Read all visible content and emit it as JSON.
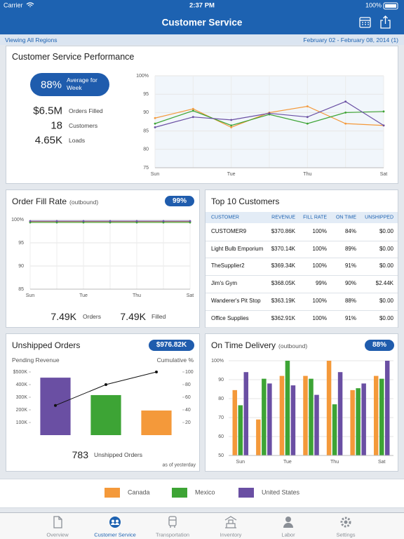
{
  "status_bar": {
    "carrier": "Carrier",
    "time": "2:37 PM",
    "battery": "100%"
  },
  "nav": {
    "title": "Customer Service"
  },
  "filter": {
    "scope": "Viewing All Regions",
    "date_range": "February 02 - February 08, 2014 (1)"
  },
  "legend": [
    {
      "name": "Canada",
      "color": "#f4993a"
    },
    {
      "name": "Mexico",
      "color": "#3da435"
    },
    {
      "name": "United States",
      "color": "#6a4fa3"
    }
  ],
  "performance": {
    "title": "Customer Service Performance",
    "badge_value": "88%",
    "badge_label": "Average for Week",
    "stats": [
      {
        "value": "$6.5M",
        "label": "Orders Filled"
      },
      {
        "value": "18",
        "label": "Customers"
      },
      {
        "value": "4.65K",
        "label": "Loads"
      }
    ],
    "chart": {
      "type": "line",
      "categories": [
        "Sun",
        null,
        "Tue",
        null,
        "Thu",
        null,
        "Sat"
      ],
      "ylim": [
        75,
        100
      ],
      "yticks": [
        75,
        80,
        85,
        90,
        95,
        {
          "value": 100,
          "label": "100%"
        }
      ],
      "grid": true,
      "series": [
        {
          "values": [
            88.5,
            91,
            86,
            90,
            91.7,
            87,
            86.5
          ]
        },
        {
          "values": [
            87,
            90.5,
            86.5,
            89.5,
            87,
            90,
            90.3
          ]
        },
        {
          "values": [
            86,
            88.8,
            88,
            89.8,
            88.8,
            93,
            86.5
          ]
        }
      ]
    }
  },
  "order_fill": {
    "title": "Order Fill Rate",
    "subtitle": "(outbound)",
    "badge": "99%",
    "chart": {
      "type": "line",
      "categories": [
        "Sun",
        null,
        "Tue",
        null,
        "Thu",
        null,
        "Sat"
      ],
      "ylim": [
        85,
        100
      ],
      "yticks": [
        85,
        90,
        95,
        {
          "value": 100,
          "label": "100%"
        }
      ],
      "grid": true,
      "series": [
        {
          "values": [
            99.6,
            99.6,
            99.6,
            99.6,
            99.6,
            99.6,
            99.6
          ]
        },
        {
          "values": [
            99.4,
            99.4,
            99.4,
            99.4,
            99.4,
            99.4,
            99.4
          ]
        },
        {
          "values": [
            99.7,
            99.7,
            99.7,
            99.7,
            99.7,
            99.7,
            99.7
          ]
        }
      ]
    },
    "stats": [
      {
        "value": "7.49K",
        "label": "Orders"
      },
      {
        "value": "7.49K",
        "label": "Filled"
      }
    ]
  },
  "top_customers": {
    "title": "Top 10 Customers",
    "table": {
      "headers": [
        "CUSTOMER",
        "REVENUE",
        "FILL RATE",
        "ON TIME",
        "UNSHIPPED"
      ],
      "rows": [
        [
          "CUSTOMER9",
          "$370.86K",
          "100%",
          "84%",
          "$0.00"
        ],
        [
          "Light Bulb Emporium",
          "$370.14K",
          "100%",
          "89%",
          "$0.00"
        ],
        [
          "TheSupplier2",
          "$369.34K",
          "100%",
          "91%",
          "$0.00"
        ],
        [
          "Jim's Gym",
          "$368.05K",
          "99%",
          "90%",
          "$2.44K"
        ],
        [
          "Wanderer's Pit Stop",
          "$363.19K",
          "100%",
          "88%",
          "$0.00"
        ],
        [
          "Office Supplies",
          "$362.91K",
          "100%",
          "91%",
          "$0.00"
        ]
      ]
    }
  },
  "unshipped": {
    "title": "Unshipped Orders",
    "badge": "$976.82K",
    "left_label": "Pending Revenue",
    "right_label": "Cumulative %",
    "chart": {
      "type": "bar",
      "ylim": [
        0,
        500000
      ],
      "yticks": [
        {
          "value": 100000,
          "label": "100K"
        },
        {
          "value": 200000,
          "label": "200K"
        },
        {
          "value": 300000,
          "label": "300K"
        },
        {
          "value": 400000,
          "label": "400K"
        },
        {
          "value": 500000,
          "label": "$500K"
        }
      ],
      "y2lim": [
        0,
        100
      ],
      "y2ticks": [
        20,
        40,
        60,
        80,
        100
      ],
      "grid": false,
      "values": [
        455000,
        317000,
        195000
      ],
      "colors": [
        "#6a4fa3",
        "#3da435",
        "#f4993a"
      ],
      "cumulative": {
        "axis": "y2",
        "color": "#111111",
        "values": [
          47,
          80,
          100
        ]
      }
    },
    "count": "783",
    "count_label": "Unshipped Orders",
    "note": "as of yesterday"
  },
  "on_time": {
    "title": "On Time Delivery",
    "subtitle": "(outbound)",
    "badge": "88%",
    "chart": {
      "type": "bar",
      "categories": [
        "Sun",
        null,
        "Tue",
        null,
        "Thu",
        null,
        "Sat"
      ],
      "ylim": [
        50,
        100
      ],
      "yticks": [
        50,
        60,
        70,
        80,
        90,
        {
          "value": 100,
          "label": "100%"
        }
      ],
      "grid": true,
      "series": [
        {
          "values": [
            84.5,
            69,
            92,
            92,
            100,
            84.5,
            92
          ]
        },
        {
          "values": [
            76.5,
            90.5,
            100,
            90.5,
            77,
            85.5,
            90.5
          ]
        },
        {
          "values": [
            94,
            88,
            87,
            82,
            94,
            88,
            100
          ]
        }
      ]
    }
  },
  "tabs": {
    "active": 1,
    "items": [
      "Overview",
      "Customer Service",
      "Transportation",
      "Inventory",
      "Labor",
      "Settings"
    ]
  }
}
